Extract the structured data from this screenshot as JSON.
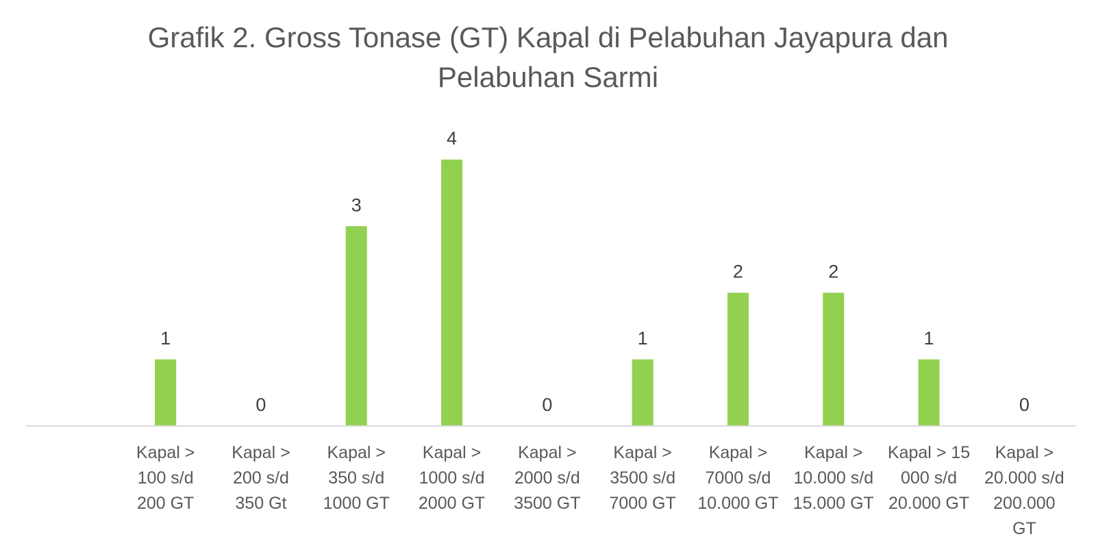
{
  "chart_data": {
    "type": "bar",
    "title_lines": [
      "Grafik 2. Gross Tonase (GT) Kapal di Pelabuhan Jayapura dan",
      "Pelabuhan Sarmi"
    ],
    "categories": [
      [
        "Kapal >",
        "100 s/d",
        "200 GT"
      ],
      [
        "Kapal >",
        "200 s/d",
        "350 Gt"
      ],
      [
        "Kapal >",
        "350 s/d",
        "1000 GT"
      ],
      [
        "Kapal >",
        "1000 s/d",
        "2000 GT"
      ],
      [
        "Kapal >",
        "2000 s/d",
        "3500 GT"
      ],
      [
        "Kapal >",
        "3500 s/d",
        "7000 GT"
      ],
      [
        "Kapal >",
        "7000 s/d",
        "10.000 GT"
      ],
      [
        "Kapal >",
        "10.000 s/d",
        "15.000 GT"
      ],
      [
        "Kapal > 15",
        "000 s/d",
        "20.000 GT"
      ],
      [
        "Kapal >",
        "20.000 s/d",
        "200.000",
        "GT"
      ]
    ],
    "values": [
      1,
      0,
      3,
      4,
      0,
      1,
      2,
      2,
      1,
      0
    ],
    "ylim": [
      0,
      4
    ],
    "grid": false,
    "legend": "none",
    "bar_color": "#92d050",
    "axis_color": "#d9d9d9"
  }
}
